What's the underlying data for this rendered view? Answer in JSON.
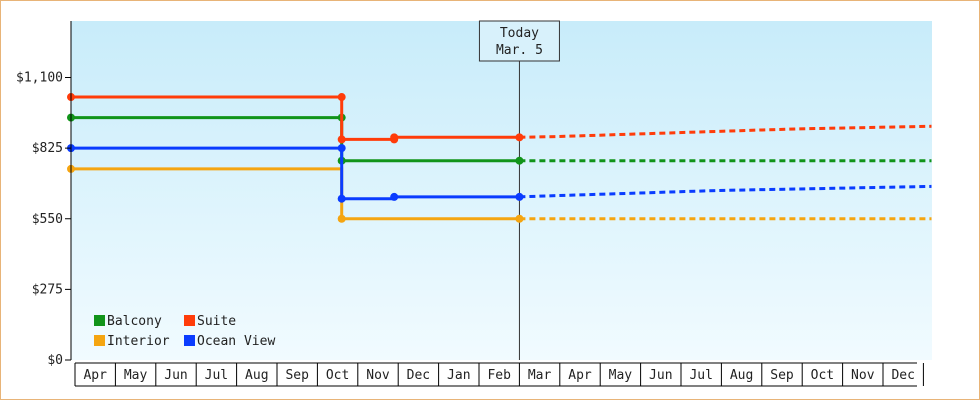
{
  "chart_data": {
    "type": "line",
    "step": true,
    "ylim": [
      0,
      1320
    ],
    "yticks": [
      "$0",
      "$275",
      "$550",
      "$825",
      "$1,100"
    ],
    "ytick_values": [
      0,
      275,
      550,
      825,
      1100
    ],
    "months": [
      "Apr",
      "May",
      "Jun",
      "Jul",
      "Aug",
      "Sep",
      "Oct",
      "Nov",
      "Dec",
      "Jan",
      "Feb",
      "Mar",
      "Apr",
      "May",
      "Jun",
      "Jul",
      "Aug",
      "Sep",
      "Oct",
      "Nov",
      "Dec"
    ],
    "today": {
      "line1": "Today",
      "line2": "Mar. 5"
    },
    "legend_position": "bottom-left",
    "series": [
      {
        "name": "Balcony",
        "color": "#11941a",
        "actual": [
          [
            0,
            944
          ],
          [
            6.7,
            944
          ],
          [
            6.7,
            776
          ],
          [
            11.1,
            776
          ]
        ],
        "points": [
          [
            0,
            944
          ],
          [
            6.7,
            944
          ],
          [
            6.7,
            776
          ],
          [
            11.1,
            776
          ]
        ],
        "forecast": [
          [
            11.1,
            776
          ],
          [
            21.3,
            776
          ]
        ]
      },
      {
        "name": "Suite",
        "color": "#ff3c0a",
        "actual": [
          [
            0,
            1024
          ],
          [
            6.7,
            1024
          ],
          [
            6.7,
            859
          ],
          [
            8.0,
            859
          ],
          [
            8.0,
            867
          ],
          [
            11.1,
            867
          ]
        ],
        "points": [
          [
            0,
            1024
          ],
          [
            6.7,
            1024
          ],
          [
            6.7,
            859
          ],
          [
            8.0,
            859
          ],
          [
            8.0,
            867
          ],
          [
            11.1,
            867
          ]
        ],
        "forecast": [
          [
            11.1,
            867
          ],
          [
            12,
            870
          ],
          [
            13,
            875
          ],
          [
            14,
            880
          ],
          [
            15,
            885
          ],
          [
            16,
            890
          ],
          [
            17,
            895
          ],
          [
            18,
            900
          ],
          [
            19,
            903
          ],
          [
            20,
            906
          ],
          [
            21.3,
            910
          ]
        ]
      },
      {
        "name": "Interior",
        "color": "#f5a511",
        "actual": [
          [
            0,
            744
          ],
          [
            6.7,
            744
          ],
          [
            6.7,
            550
          ],
          [
            11.1,
            550
          ]
        ],
        "points": [
          [
            0,
            744
          ],
          [
            6.7,
            550
          ],
          [
            11.1,
            550
          ]
        ],
        "forecast": [
          [
            11.1,
            550
          ],
          [
            21.3,
            550
          ]
        ]
      },
      {
        "name": "Ocean View",
        "color": "#0a3cff",
        "actual": [
          [
            0,
            825
          ],
          [
            6.7,
            825
          ],
          [
            6.7,
            628
          ],
          [
            8.0,
            628
          ],
          [
            8.0,
            635
          ],
          [
            11.1,
            635
          ]
        ],
        "points": [
          [
            0,
            825
          ],
          [
            6.7,
            825
          ],
          [
            6.7,
            628
          ],
          [
            8.0,
            635
          ],
          [
            11.1,
            635
          ]
        ],
        "forecast": [
          [
            11.1,
            635
          ],
          [
            12,
            640
          ],
          [
            13,
            645
          ],
          [
            14,
            650
          ],
          [
            15,
            655
          ],
          [
            16,
            660
          ],
          [
            17,
            663
          ],
          [
            18,
            666
          ],
          [
            19,
            669
          ],
          [
            20,
            672
          ],
          [
            21.3,
            676
          ]
        ]
      }
    ]
  }
}
